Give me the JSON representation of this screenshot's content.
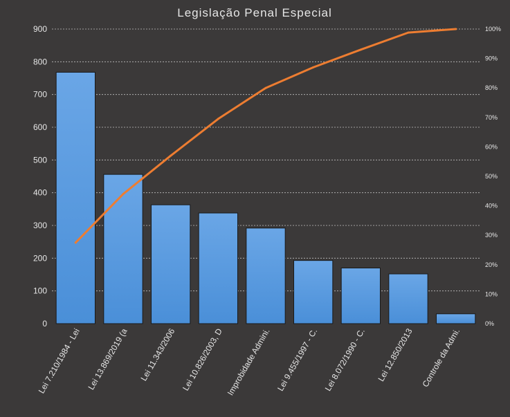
{
  "chart_data": {
    "type": "bar",
    "title": "Legislação Penal Especial",
    "categories": [
      "Lei 7.210/1984  - Lei",
      "Lei 13.869/2019  (a",
      "Lei 11.343/2006",
      "Lei 10.826/2003,  D",
      "Improbidade Admini.",
      "Lei 9.455/1997  - C.",
      "Lei 8.072/1990  - C.",
      "Lei 12.850/2013",
      "Controle da Admi."
    ],
    "series": [
      {
        "type": "bar",
        "values": [
          768,
          456,
          363,
          338,
          292,
          193,
          170,
          152,
          30
        ]
      },
      {
        "type": "line",
        "axis": "secondary",
        "values": [
          27.5,
          44,
          57,
          69.5,
          80,
          87,
          93,
          98.8,
          100
        ]
      }
    ],
    "ylim": [
      0,
      900
    ],
    "yticks": [
      "0",
      "100",
      "200",
      "300",
      "400",
      "500",
      "600",
      "700",
      "800",
      "900"
    ],
    "y2lim": [
      0,
      100
    ],
    "y2ticks": [
      "0%",
      "10%",
      "20%",
      "30%",
      "40%",
      "50%",
      "60%",
      "70%",
      "80%",
      "90%",
      "100%"
    ],
    "grid": true,
    "legend": "none",
    "colors": {
      "background": "#3b3939",
      "bar": "#4a8fd8",
      "bar_top": "#6aa6e6",
      "bar_border": "#1a1a1a",
      "line": "#ed7d31",
      "text": "#e6e6e6",
      "grid": "#d9d9d9"
    }
  }
}
